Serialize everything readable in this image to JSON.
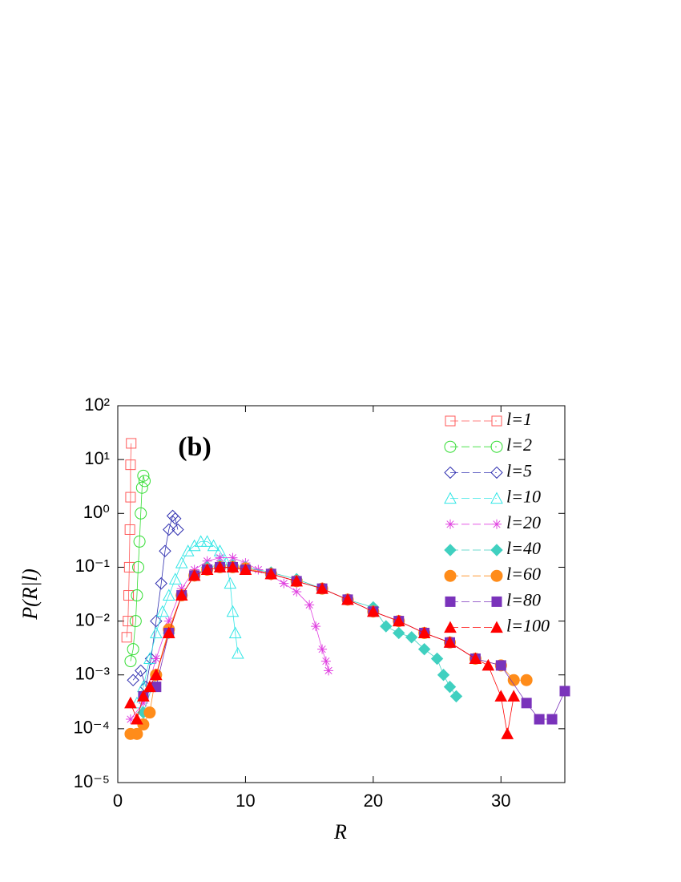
{
  "chart_data": {
    "type": "scatter",
    "annotation": "(b)",
    "x_label": "R",
    "y_label": "P(R|l)",
    "log_y": true,
    "legend": "upper right",
    "xlim": [
      0,
      35
    ],
    "xticks": [
      0,
      10,
      20,
      30
    ],
    "ylim": [
      1e-05,
      100
    ],
    "yticks": [
      {
        "value": 1e-05,
        "label": "10⁻⁵"
      },
      {
        "value": 0.0001,
        "label": "10⁻⁴"
      },
      {
        "value": 0.001,
        "label": "10⁻³"
      },
      {
        "value": 0.01,
        "label": "10⁻²"
      },
      {
        "value": 0.1,
        "label": "10⁻¹"
      },
      {
        "value": 1,
        "label": "10⁰"
      },
      {
        "value": 10,
        "label": "10¹"
      },
      {
        "value": 100,
        "label": "10²"
      }
    ],
    "series": [
      {
        "name": "l=1",
        "color": "#ff5a5a",
        "marker": "square-open",
        "x": [
          0.7,
          0.8,
          0.85,
          0.9,
          0.95,
          1.0,
          1.0,
          1.05
        ],
        "values": [
          0.005,
          0.01,
          0.03,
          0.1,
          0.5,
          2,
          8,
          20
        ]
      },
      {
        "name": "l=2",
        "color": "#33dd33",
        "marker": "circle-open",
        "x": [
          1.0,
          1.2,
          1.4,
          1.5,
          1.6,
          1.7,
          1.8,
          1.9,
          2.0,
          2.1
        ],
        "values": [
          0.0018,
          0.003,
          0.01,
          0.03,
          0.1,
          0.3,
          1,
          3,
          5,
          4
        ]
      },
      {
        "name": "l=5",
        "color": "#3030b0",
        "marker": "diamond-open",
        "x": [
          1.2,
          1.8,
          2.2,
          2.6,
          3.0,
          3.4,
          3.7,
          4.0,
          4.3,
          4.5,
          4.7
        ],
        "values": [
          0.0008,
          0.0012,
          0.0006,
          0.002,
          0.01,
          0.05,
          0.2,
          0.5,
          0.9,
          0.8,
          0.5
        ]
      },
      {
        "name": "l=10",
        "color": "#33e6e6",
        "marker": "triangle-open",
        "x": [
          1.5,
          2,
          2.5,
          3,
          3.5,
          4,
          4.5,
          5,
          5.5,
          6,
          6.5,
          7,
          7.5,
          8,
          8.5,
          8.8,
          9,
          9.2,
          9.4
        ],
        "values": [
          0.0003,
          0.0006,
          0.002,
          0.006,
          0.015,
          0.03,
          0.06,
          0.12,
          0.2,
          0.25,
          0.3,
          0.3,
          0.25,
          0.2,
          0.12,
          0.05,
          0.015,
          0.006,
          0.0025
        ]
      },
      {
        "name": "l=20",
        "color": "#e040e0",
        "marker": "asterisk",
        "x": [
          1,
          2,
          3,
          4,
          5,
          6,
          7,
          8,
          9,
          10,
          11,
          12,
          13,
          14,
          15,
          15.5,
          16,
          16.3,
          16.5
        ],
        "values": [
          0.00015,
          0.0003,
          0.002,
          0.01,
          0.04,
          0.09,
          0.13,
          0.15,
          0.15,
          0.12,
          0.09,
          0.07,
          0.05,
          0.035,
          0.02,
          0.008,
          0.003,
          0.0018,
          0.0012
        ]
      },
      {
        "name": "l=40",
        "color": "#40d0c0",
        "marker": "diamond",
        "x": [
          2,
          3,
          4,
          5,
          6,
          7,
          8,
          9,
          10,
          12,
          14,
          16,
          18,
          20,
          21,
          22,
          23,
          24,
          25,
          25.5,
          26,
          26.5
        ],
        "values": [
          0.0002,
          0.001,
          0.006,
          0.03,
          0.07,
          0.1,
          0.11,
          0.11,
          0.1,
          0.08,
          0.06,
          0.04,
          0.025,
          0.018,
          0.008,
          0.006,
          0.005,
          0.003,
          0.002,
          0.001,
          0.0006,
          0.0004
        ]
      },
      {
        "name": "l=60",
        "color": "#ff8c1a",
        "marker": "circle",
        "x": [
          1,
          1.5,
          2,
          2.5,
          3,
          4,
          5,
          6,
          7,
          8,
          9,
          10,
          12,
          14,
          16,
          18,
          20,
          22,
          24,
          26,
          28,
          30,
          31,
          32
        ],
        "values": [
          8e-05,
          8e-05,
          0.00012,
          0.0002,
          0.001,
          0.007,
          0.03,
          0.07,
          0.09,
          0.1,
          0.1,
          0.095,
          0.075,
          0.055,
          0.04,
          0.025,
          0.015,
          0.01,
          0.006,
          0.004,
          0.002,
          0.0015,
          0.0008,
          0.0008
        ]
      },
      {
        "name": "l=80",
        "color": "#7a33bb",
        "marker": "square",
        "x": [
          2,
          3,
          4,
          5,
          6,
          7,
          8,
          9,
          10,
          12,
          14,
          16,
          18,
          20,
          22,
          24,
          26,
          28,
          30,
          32,
          33,
          34,
          35
        ],
        "values": [
          0.0004,
          0.0006,
          0.006,
          0.03,
          0.07,
          0.09,
          0.1,
          0.1,
          0.09,
          0.075,
          0.055,
          0.04,
          0.025,
          0.015,
          0.01,
          0.006,
          0.004,
          0.002,
          0.0015,
          0.0003,
          0.00015,
          0.00015,
          0.0005
        ]
      },
      {
        "name": "l=100",
        "color": "#ff0000",
        "marker": "triangle",
        "x": [
          1,
          1.5,
          2,
          2.5,
          3,
          4,
          5,
          6,
          7,
          8,
          9,
          10,
          12,
          14,
          16,
          18,
          20,
          22,
          24,
          26,
          28,
          29,
          30,
          30.5,
          31
        ],
        "values": [
          0.0003,
          0.00015,
          0.0004,
          0.0006,
          0.001,
          0.006,
          0.03,
          0.07,
          0.09,
          0.1,
          0.1,
          0.09,
          0.075,
          0.055,
          0.04,
          0.025,
          0.015,
          0.01,
          0.006,
          0.004,
          0.002,
          0.0015,
          0.0004,
          8e-05,
          0.0004
        ]
      }
    ]
  }
}
